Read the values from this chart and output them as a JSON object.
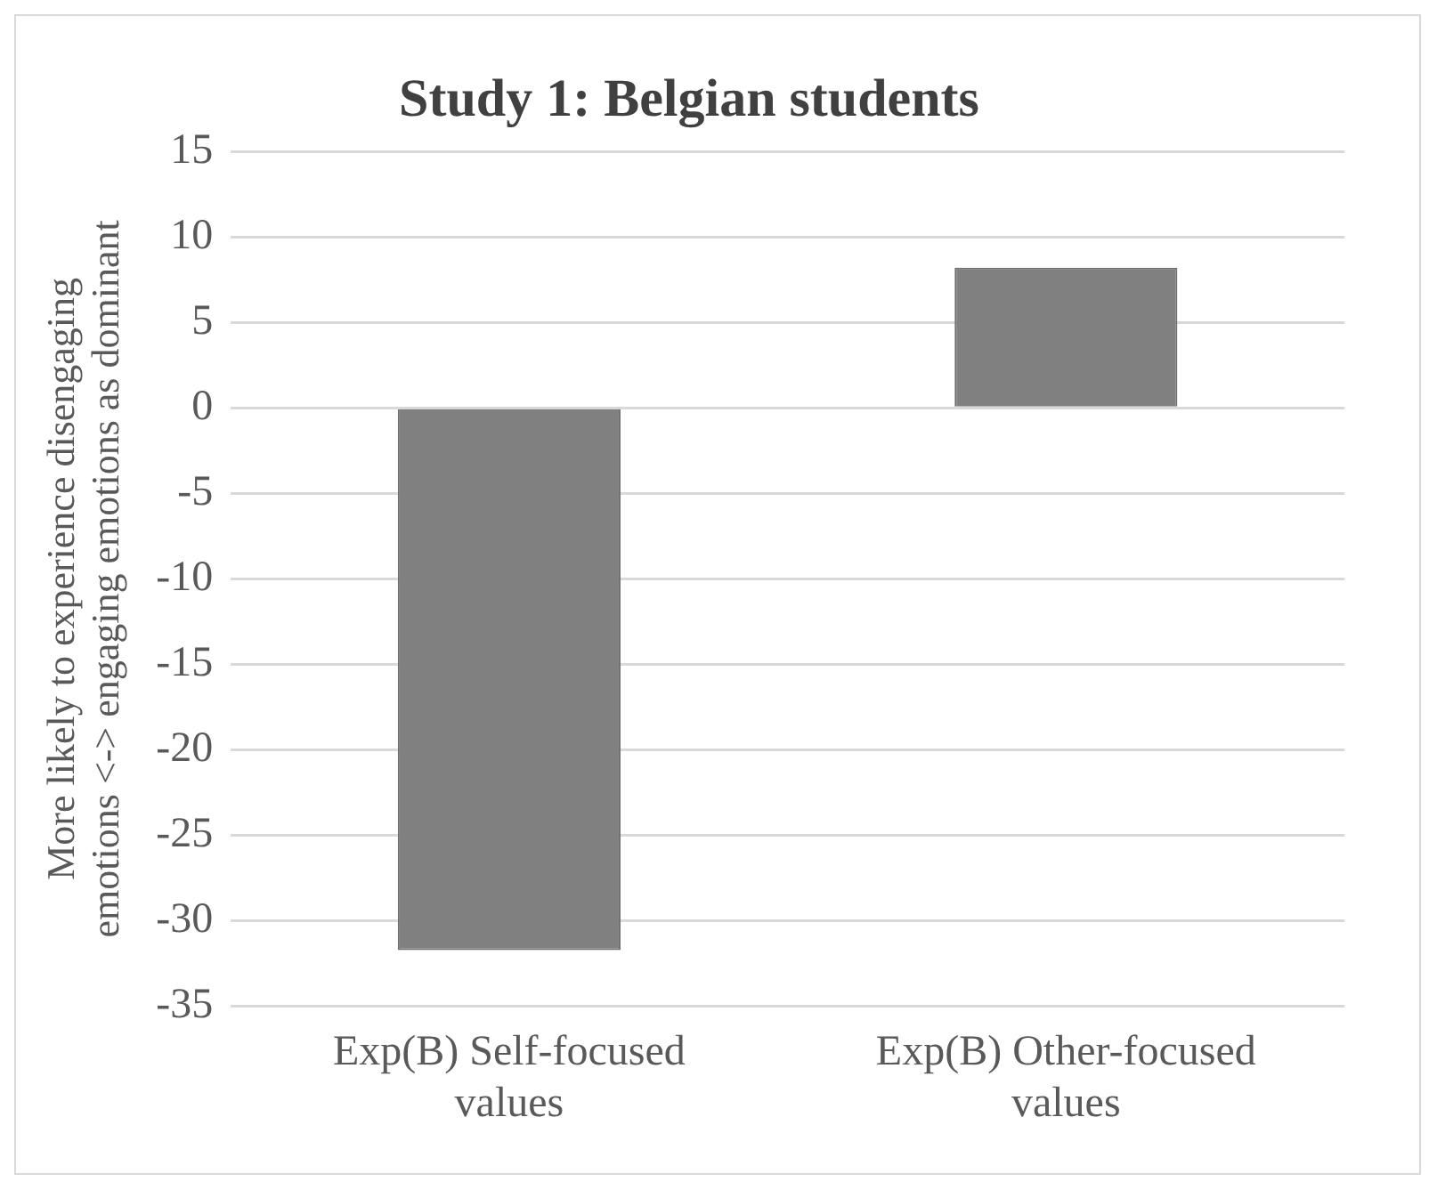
{
  "chart_data": {
    "type": "bar",
    "title": "Study 1: Belgian students",
    "ylabel": "More likely to experience disengaging emotions <-> engaging emotions as dominant",
    "categories": [
      "Exp(B) Self-focused values",
      "Exp(B) Other-focused values"
    ],
    "values": [
      -31.7,
      8.2
    ],
    "color": "#808080",
    "ylim": [
      -35,
      15
    ],
    "yticks": [
      -35,
      -30,
      -25,
      -20,
      -15,
      -10,
      -5,
      0,
      5,
      10,
      15
    ],
    "grid": "y",
    "legend": false
  }
}
